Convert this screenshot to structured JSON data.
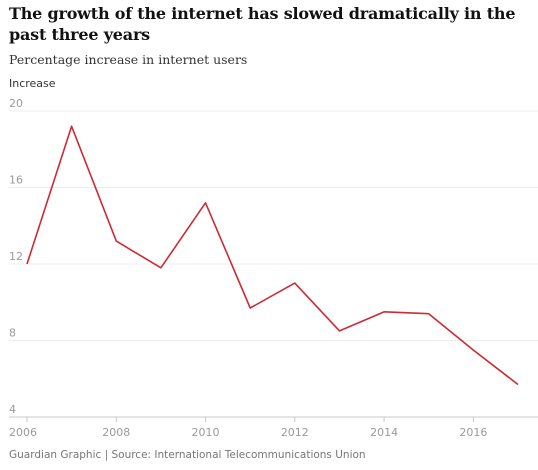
{
  "title": "The growth of the internet has slowed dramatically in the past three years",
  "subtitle": "Percentage increase in internet users",
  "footer": "Guardian Graphic | Source: International Telecommunications Union",
  "colors": {
    "line": "#cc2b35",
    "grid": "#ececec",
    "axis": "#c8c8c8",
    "tick_text": "#9a9a9a"
  },
  "chart_data": {
    "type": "line",
    "title": "The growth of the internet has slowed dramatically in the past three years",
    "subtitle": "Percentage increase in internet users",
    "xlabel": "",
    "ylabel": "Increase",
    "x": [
      2006,
      2007,
      2008,
      2009,
      2010,
      2011,
      2012,
      2013,
      2014,
      2015,
      2016,
      2017
    ],
    "values": [
      12.0,
      19.2,
      13.2,
      11.8,
      15.2,
      9.7,
      11.0,
      8.5,
      9.5,
      9.4,
      7.5,
      5.7
    ],
    "xlim": [
      2006,
      2017
    ],
    "ylim": [
      4,
      20
    ],
    "x_ticks": [
      2006,
      2008,
      2010,
      2012,
      2014,
      2016
    ],
    "y_ticks": [
      4,
      8,
      12,
      16,
      20
    ],
    "grid": "horizontal"
  }
}
